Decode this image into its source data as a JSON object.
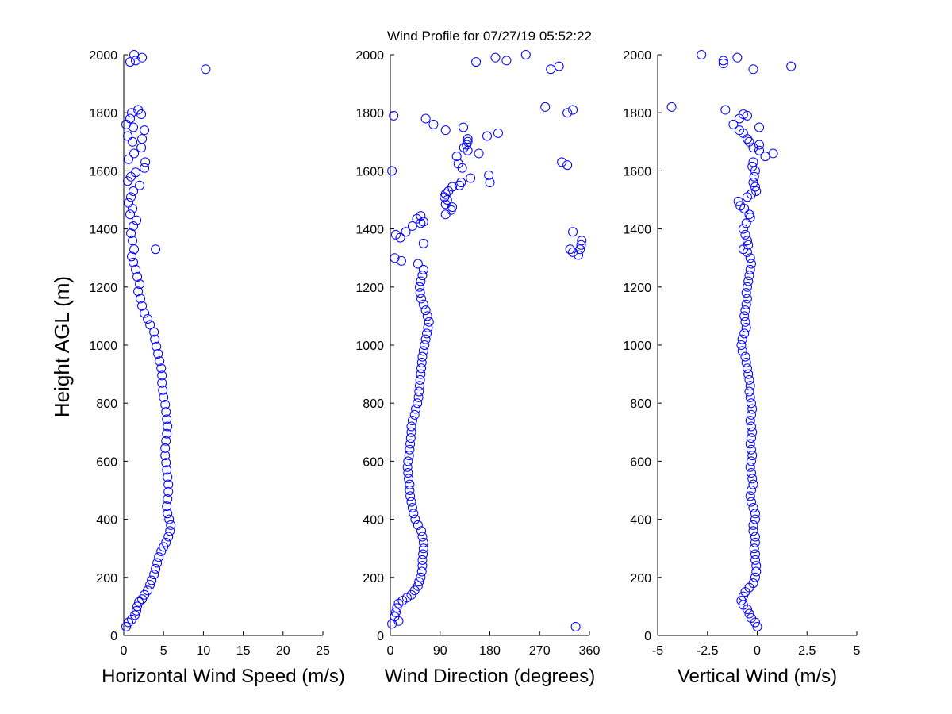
{
  "figure": {
    "title": "Wind Profile for  07/27/19 05:52:22",
    "ylabel": "Height AGL (m)",
    "marker_color": "#0000ff"
  },
  "chart_data": [
    {
      "type": "scatter",
      "xlabel": "Horizontal Wind Speed (m/s)",
      "xlim": [
        0,
        25
      ],
      "ylim": [
        0,
        2000
      ],
      "xticks": [
        0,
        5,
        10,
        15,
        20,
        25
      ],
      "xtick_labels": [
        "0",
        "5",
        "10",
        "15",
        "20",
        "25"
      ],
      "yticks": [
        0,
        200,
        400,
        600,
        800,
        1000,
        1200,
        1400,
        1600,
        1800,
        2000
      ],
      "ytick_labels": [
        "0",
        "200",
        "400",
        "600",
        "800",
        "1000",
        "1200",
        "1400",
        "1600",
        "1800",
        "2000"
      ],
      "grid": false,
      "points": [
        [
          0.3,
          30
        ],
        [
          0.6,
          45
        ],
        [
          1.0,
          55
        ],
        [
          1.4,
          70
        ],
        [
          1.6,
          85
        ],
        [
          1.7,
          100
        ],
        [
          1.9,
          115
        ],
        [
          2.3,
          125
        ],
        [
          2.6,
          140
        ],
        [
          3.0,
          155
        ],
        [
          3.3,
          175
        ],
        [
          3.5,
          190
        ],
        [
          3.8,
          210
        ],
        [
          4.0,
          230
        ],
        [
          4.2,
          250
        ],
        [
          4.4,
          270
        ],
        [
          4.7,
          290
        ],
        [
          5.0,
          305
        ],
        [
          5.3,
          320
        ],
        [
          5.6,
          340
        ],
        [
          5.8,
          360
        ],
        [
          5.9,
          380
        ],
        [
          5.7,
          400
        ],
        [
          5.5,
          420
        ],
        [
          5.4,
          445
        ],
        [
          5.5,
          470
        ],
        [
          5.6,
          495
        ],
        [
          5.6,
          520
        ],
        [
          5.5,
          545
        ],
        [
          5.4,
          570
        ],
        [
          5.3,
          595
        ],
        [
          5.2,
          620
        ],
        [
          5.2,
          645
        ],
        [
          5.3,
          670
        ],
        [
          5.4,
          695
        ],
        [
          5.5,
          720
        ],
        [
          5.4,
          745
        ],
        [
          5.3,
          770
        ],
        [
          5.2,
          795
        ],
        [
          5.0,
          820
        ],
        [
          4.9,
          845
        ],
        [
          4.8,
          870
        ],
        [
          4.8,
          895
        ],
        [
          4.7,
          920
        ],
        [
          4.5,
          945
        ],
        [
          4.3,
          970
        ],
        [
          4.1,
          995
        ],
        [
          3.9,
          1020
        ],
        [
          3.8,
          1045
        ],
        [
          3.3,
          1070
        ],
        [
          3.0,
          1090
        ],
        [
          2.6,
          1110
        ],
        [
          2.3,
          1135
        ],
        [
          2.1,
          1160
        ],
        [
          1.8,
          1185
        ],
        [
          2.0,
          1210
        ],
        [
          1.7,
          1235
        ],
        [
          1.5,
          1260
        ],
        [
          1.2,
          1285
        ],
        [
          1.0,
          1305
        ],
        [
          4.0,
          1330
        ],
        [
          1.3,
          1330
        ],
        [
          1.1,
          1360
        ],
        [
          0.9,
          1385
        ],
        [
          1.2,
          1410
        ],
        [
          1.6,
          1430
        ],
        [
          0.8,
          1450
        ],
        [
          1.1,
          1470
        ],
        [
          0.6,
          1490
        ],
        [
          0.9,
          1510
        ],
        [
          1.2,
          1530
        ],
        [
          2.0,
          1550
        ],
        [
          0.5,
          1565
        ],
        [
          0.9,
          1580
        ],
        [
          1.5,
          1595
        ],
        [
          2.6,
          1610
        ],
        [
          2.7,
          1630
        ],
        [
          0.6,
          1640
        ],
        [
          1.3,
          1660
        ],
        [
          2.2,
          1680
        ],
        [
          1.1,
          1700
        ],
        [
          2.3,
          1710
        ],
        [
          0.5,
          1720
        ],
        [
          2.6,
          1740
        ],
        [
          1.2,
          1750
        ],
        [
          0.3,
          1760
        ],
        [
          0.8,
          1780
        ],
        [
          2.2,
          1795
        ],
        [
          1.0,
          1800
        ],
        [
          1.8,
          1810
        ],
        [
          0.8,
          1975
        ],
        [
          1.5,
          1980
        ],
        [
          2.3,
          1990
        ],
        [
          1.3,
          2000
        ],
        [
          10.3,
          1950
        ]
      ]
    },
    {
      "type": "scatter",
      "xlabel": "Wind Direction (degrees)",
      "xlim": [
        0,
        360
      ],
      "ylim": [
        0,
        2000
      ],
      "xticks": [
        0,
        90,
        180,
        270,
        360
      ],
      "xtick_labels": [
        "0",
        "90",
        "180",
        "270",
        "360"
      ],
      "yticks": [
        0,
        200,
        400,
        600,
        800,
        1000,
        1200,
        1400,
        1600,
        1800,
        2000
      ],
      "ytick_labels": [
        "0",
        "200",
        "400",
        "600",
        "800",
        "1000",
        "1200",
        "1400",
        "1600",
        "1800",
        "2000"
      ],
      "grid": false,
      "points": [
        [
          3,
          40
        ],
        [
          15,
          50
        ],
        [
          8,
          65
        ],
        [
          10,
          80
        ],
        [
          12,
          95
        ],
        [
          15,
          110
        ],
        [
          22,
          120
        ],
        [
          30,
          130
        ],
        [
          38,
          140
        ],
        [
          44,
          155
        ],
        [
          50,
          170
        ],
        [
          52,
          185
        ],
        [
          55,
          200
        ],
        [
          57,
          220
        ],
        [
          58,
          240
        ],
        [
          58,
          260
        ],
        [
          59,
          280
        ],
        [
          60,
          300
        ],
        [
          60,
          320
        ],
        [
          58,
          340
        ],
        [
          56,
          360
        ],
        [
          50,
          380
        ],
        [
          45,
          400
        ],
        [
          42,
          420
        ],
        [
          40,
          440
        ],
        [
          38,
          460
        ],
        [
          36,
          480
        ],
        [
          35,
          500
        ],
        [
          35,
          520
        ],
        [
          33,
          540
        ],
        [
          32,
          560
        ],
        [
          31,
          580
        ],
        [
          32,
          600
        ],
        [
          34,
          620
        ],
        [
          35,
          640
        ],
        [
          36,
          660
        ],
        [
          37,
          680
        ],
        [
          38,
          700
        ],
        [
          38,
          720
        ],
        [
          40,
          740
        ],
        [
          44,
          760
        ],
        [
          46,
          780
        ],
        [
          49,
          800
        ],
        [
          51,
          820
        ],
        [
          52,
          840
        ],
        [
          53,
          860
        ],
        [
          54,
          880
        ],
        [
          55,
          900
        ],
        [
          56,
          920
        ],
        [
          57,
          940
        ],
        [
          58,
          960
        ],
        [
          60,
          980
        ],
        [
          62,
          1000
        ],
        [
          64,
          1020
        ],
        [
          66,
          1040
        ],
        [
          68,
          1060
        ],
        [
          70,
          1080
        ],
        [
          67,
          1100
        ],
        [
          64,
          1120
        ],
        [
          60,
          1140
        ],
        [
          56,
          1160
        ],
        [
          54,
          1180
        ],
        [
          53,
          1200
        ],
        [
          55,
          1220
        ],
        [
          58,
          1240
        ],
        [
          60,
          1260
        ],
        [
          50,
          1280
        ],
        [
          8,
          1300
        ],
        [
          20,
          1290
        ],
        [
          340,
          1310
        ],
        [
          330,
          1320
        ],
        [
          343,
          1330
        ],
        [
          325,
          1330
        ],
        [
          345,
          1345
        ],
        [
          346,
          1360
        ],
        [
          60,
          1350
        ],
        [
          18,
          1370
        ],
        [
          10,
          1380
        ],
        [
          28,
          1390
        ],
        [
          330,
          1390
        ],
        [
          40,
          1410
        ],
        [
          55,
          1420
        ],
        [
          60,
          1425
        ],
        [
          48,
          1435
        ],
        [
          55,
          1445
        ],
        [
          100,
          1450
        ],
        [
          110,
          1465
        ],
        [
          112,
          1475
        ],
        [
          100,
          1485
        ],
        [
          103,
          1500
        ],
        [
          98,
          1510
        ],
        [
          100,
          1520
        ],
        [
          105,
          1530
        ],
        [
          112,
          1545
        ],
        [
          125,
          1550
        ],
        [
          128,
          1560
        ],
        [
          180,
          1560
        ],
        [
          145,
          1575
        ],
        [
          178,
          1585
        ],
        [
          130,
          1610
        ],
        [
          123,
          1625
        ],
        [
          310,
          1630
        ],
        [
          320,
          1620
        ],
        [
          3,
          1600
        ],
        [
          120,
          1650
        ],
        [
          160,
          1660
        ],
        [
          140,
          1670
        ],
        [
          133,
          1680
        ],
        [
          138,
          1690
        ],
        [
          140,
          1700
        ],
        [
          140,
          1710
        ],
        [
          175,
          1720
        ],
        [
          195,
          1730
        ],
        [
          100,
          1740
        ],
        [
          132,
          1750
        ],
        [
          78,
          1760
        ],
        [
          64,
          1780
        ],
        [
          6,
          1790
        ],
        [
          320,
          1800
        ],
        [
          330,
          1810
        ],
        [
          280,
          1820
        ],
        [
          155,
          1975
        ],
        [
          190,
          1990
        ],
        [
          210,
          1980
        ],
        [
          245,
          2000
        ],
        [
          290,
          1950
        ],
        [
          305,
          1960
        ],
        [
          335,
          30
        ]
      ]
    },
    {
      "type": "scatter",
      "xlabel": "Vertical Wind (m/s)",
      "xlim": [
        -5,
        5
      ],
      "ylim": [
        0,
        2000
      ],
      "xticks": [
        -5,
        -2.5,
        0,
        2.5,
        5
      ],
      "xtick_labels": [
        "-5",
        "-2.5",
        "0",
        "2.5",
        "5"
      ],
      "yticks": [
        0,
        200,
        400,
        600,
        800,
        1000,
        1200,
        1400,
        1600,
        1800,
        2000
      ],
      "ytick_labels": [
        "0",
        "200",
        "400",
        "600",
        "800",
        "1000",
        "1200",
        "1400",
        "1600",
        "1800",
        "2000"
      ],
      "grid": false,
      "points": [
        [
          0.0,
          30
        ],
        [
          -0.1,
          45
        ],
        [
          -0.3,
          60
        ],
        [
          -0.4,
          75
        ],
        [
          -0.5,
          90
        ],
        [
          -0.7,
          105
        ],
        [
          -0.8,
          120
        ],
        [
          -0.7,
          135
        ],
        [
          -0.6,
          150
        ],
        [
          -0.4,
          165
        ],
        [
          -0.2,
          180
        ],
        [
          -0.1,
          200
        ],
        [
          -0.05,
          220
        ],
        [
          -0.05,
          240
        ],
        [
          -0.1,
          260
        ],
        [
          -0.1,
          280
        ],
        [
          -0.15,
          300
        ],
        [
          -0.1,
          320
        ],
        [
          -0.1,
          340
        ],
        [
          -0.2,
          360
        ],
        [
          -0.2,
          380
        ],
        [
          -0.1,
          400
        ],
        [
          -0.1,
          420
        ],
        [
          -0.2,
          440
        ],
        [
          -0.3,
          460
        ],
        [
          -0.35,
          480
        ],
        [
          -0.3,
          500
        ],
        [
          -0.2,
          520
        ],
        [
          -0.25,
          540
        ],
        [
          -0.3,
          560
        ],
        [
          -0.35,
          580
        ],
        [
          -0.3,
          600
        ],
        [
          -0.25,
          620
        ],
        [
          -0.3,
          640
        ],
        [
          -0.35,
          660
        ],
        [
          -0.3,
          680
        ],
        [
          -0.25,
          700
        ],
        [
          -0.3,
          720
        ],
        [
          -0.35,
          740
        ],
        [
          -0.3,
          760
        ],
        [
          -0.25,
          780
        ],
        [
          -0.3,
          800
        ],
        [
          -0.35,
          820
        ],
        [
          -0.4,
          840
        ],
        [
          -0.35,
          860
        ],
        [
          -0.4,
          880
        ],
        [
          -0.45,
          900
        ],
        [
          -0.5,
          920
        ],
        [
          -0.55,
          940
        ],
        [
          -0.6,
          960
        ],
        [
          -0.75,
          980
        ],
        [
          -0.8,
          1000
        ],
        [
          -0.75,
          1020
        ],
        [
          -0.65,
          1040
        ],
        [
          -0.55,
          1060
        ],
        [
          -0.6,
          1080
        ],
        [
          -0.65,
          1100
        ],
        [
          -0.6,
          1120
        ],
        [
          -0.55,
          1140
        ],
        [
          -0.5,
          1160
        ],
        [
          -0.55,
          1180
        ],
        [
          -0.5,
          1200
        ],
        [
          -0.45,
          1220
        ],
        [
          -0.4,
          1240
        ],
        [
          -0.35,
          1260
        ],
        [
          -0.3,
          1280
        ],
        [
          -0.35,
          1300
        ],
        [
          -0.5,
          1320
        ],
        [
          -0.7,
          1330
        ],
        [
          -0.45,
          1345
        ],
        [
          -0.5,
          1360
        ],
        [
          -0.6,
          1380
        ],
        [
          -0.7,
          1400
        ],
        [
          -0.55,
          1420
        ],
        [
          -0.35,
          1440
        ],
        [
          -0.4,
          1450
        ],
        [
          -0.65,
          1470
        ],
        [
          -0.85,
          1480
        ],
        [
          -0.95,
          1495
        ],
        [
          -0.5,
          1510
        ],
        [
          -0.3,
          1520
        ],
        [
          -0.05,
          1530
        ],
        [
          -0.1,
          1545
        ],
        [
          -0.2,
          1560
        ],
        [
          -0.15,
          1580
        ],
        [
          -0.1,
          1600
        ],
        [
          -0.25,
          1615
        ],
        [
          -0.2,
          1630
        ],
        [
          0.4,
          1650
        ],
        [
          0.8,
          1660
        ],
        [
          0.1,
          1670
        ],
        [
          -0.2,
          1680
        ],
        [
          0.1,
          1690
        ],
        [
          -0.4,
          1700
        ],
        [
          -0.5,
          1710
        ],
        [
          -0.7,
          1730
        ],
        [
          -0.9,
          1740
        ],
        [
          0.1,
          1750
        ],
        [
          -1.2,
          1760
        ],
        [
          -0.9,
          1780
        ],
        [
          -0.7,
          1795
        ],
        [
          -0.5,
          1790
        ],
        [
          -1.6,
          1810
        ],
        [
          -4.3,
          1820
        ],
        [
          -2.8,
          2000
        ],
        [
          -1.7,
          1970
        ],
        [
          -1.7,
          1980
        ],
        [
          -1.0,
          1990
        ],
        [
          -0.2,
          1950
        ],
        [
          1.7,
          1960
        ]
      ]
    }
  ]
}
